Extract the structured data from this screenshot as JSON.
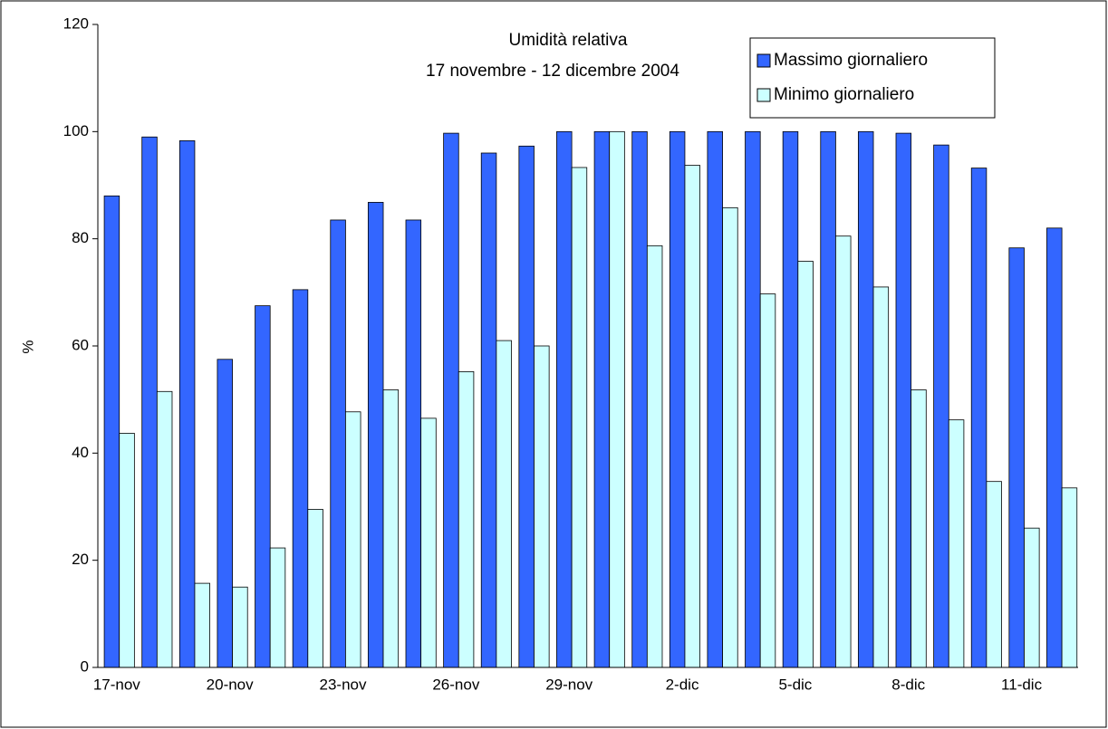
{
  "chart_data": {
    "type": "bar",
    "title": "Umidità relativa",
    "subtitle": "17 novembre - 12 dicembre 2004",
    "y_label": "%",
    "categories": [
      "17-nov",
      null,
      null,
      "20-nov",
      null,
      null,
      "23-nov",
      null,
      null,
      "26-nov",
      null,
      null,
      "29-nov",
      null,
      null,
      "2-dic",
      null,
      null,
      "5-dic",
      null,
      null,
      "8-dic",
      null,
      null,
      "11-dic",
      null
    ],
    "series": [
      {
        "name": "Massimo giornaliero",
        "color": "#3366ff",
        "values": [
          88,
          99,
          98.3,
          57.5,
          67.5,
          70.5,
          83.5,
          86.8,
          83.5,
          99.7,
          96,
          97.3,
          100,
          100,
          100,
          100,
          100,
          100,
          100,
          100,
          100,
          99.7,
          97.5,
          93.2,
          78.3,
          82
        ]
      },
      {
        "name": "Minimo giornaliero",
        "color": "#ccffff",
        "values": [
          43.7,
          51.5,
          15.7,
          15,
          22.3,
          29.5,
          47.7,
          51.8,
          46.5,
          55.2,
          61,
          60,
          93.3,
          100,
          78.7,
          93.7,
          85.8,
          69.7,
          75.8,
          80.5,
          71,
          51.8,
          46.2,
          34.7,
          26,
          33.5
        ]
      }
    ],
    "ylim": [
      0,
      120
    ],
    "yticks": [
      0,
      20,
      40,
      60,
      80,
      100,
      120
    ],
    "grid": false,
    "legend": "top-right"
  }
}
